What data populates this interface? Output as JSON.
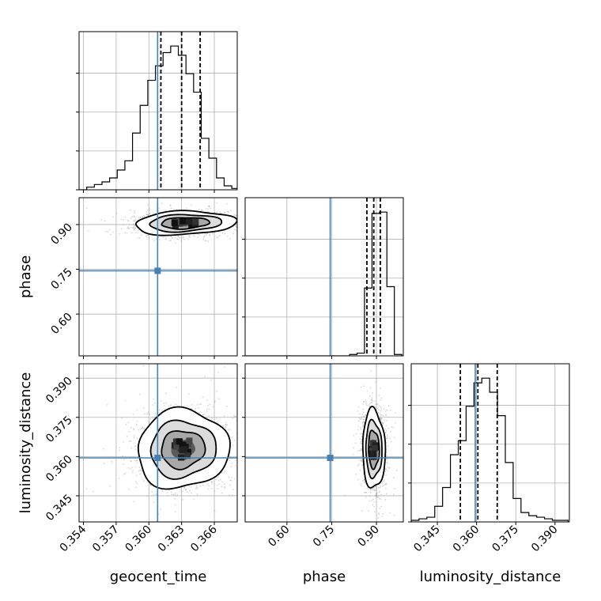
{
  "chart_data": {
    "type": "corner",
    "parameters": [
      "geocent_time",
      "phase",
      "luminosity_distance"
    ],
    "truth": {
      "geocent_time": 0.3608,
      "phase": 0.745,
      "luminosity_distance": 0.3595
    },
    "colors": {
      "truth": "#4682b4",
      "hist": "#000000",
      "grid": "#b0b0b0",
      "scatter": "#8c8c8c"
    },
    "grid": true,
    "axes": {
      "geocent_time": {
        "range": [
          0.3536,
          0.3681
        ],
        "ticks": [
          0.354,
          0.357,
          0.36,
          0.363,
          0.366
        ],
        "tick_labels": [
          "0.354",
          "0.357",
          "0.360",
          "0.363",
          "0.366"
        ]
      },
      "phase": {
        "range": [
          0.46,
          0.99
        ],
        "ticks": [
          0.6,
          0.75,
          0.9
        ],
        "tick_labels": [
          "0.60",
          "0.75",
          "0.90"
        ]
      },
      "luminosity_distance": {
        "range": [
          0.335,
          0.3955
        ],
        "ticks": [
          0.345,
          0.36,
          0.375,
          0.39
        ],
        "tick_labels": [
          "0.345",
          "0.360",
          "0.375",
          "0.390"
        ]
      }
    },
    "marginals": [
      {
        "parameter": "geocent_time",
        "bin_edges": [
          0.3536,
          0.3543,
          0.355,
          0.3557,
          0.3564,
          0.3571,
          0.3578,
          0.3585,
          0.3592,
          0.3599,
          0.3606,
          0.3613,
          0.362,
          0.3627,
          0.3634,
          0.3641,
          0.3648,
          0.3655,
          0.3662,
          0.3669,
          0.3676,
          0.3683
        ],
        "counts": [
          0,
          2,
          4,
          6,
          9,
          15,
          22,
          43,
          64,
          83,
          94,
          104,
          109,
          102,
          88,
          74,
          39,
          24,
          9,
          3,
          1
        ],
        "quantiles": [
          0.3611,
          0.363,
          0.3647
        ]
      },
      {
        "parameter": "phase",
        "bin_edges": [
          0.46,
          0.485,
          0.51,
          0.535,
          0.56,
          0.585,
          0.61,
          0.635,
          0.66,
          0.685,
          0.71,
          0.735,
          0.76,
          0.785,
          0.81,
          0.835,
          0.86,
          0.885,
          0.91,
          0.935,
          0.96,
          0.985
        ],
        "counts": [
          0,
          0,
          0,
          0,
          0,
          0,
          0,
          0,
          0,
          0,
          0,
          0,
          0,
          0,
          1,
          2,
          50,
          105,
          106,
          51,
          1
        ],
        "quantiles": [
          0.868,
          0.891,
          0.913
        ]
      },
      {
        "parameter": "luminosity_distance",
        "bin_edges": [
          0.335,
          0.338,
          0.341,
          0.344,
          0.347,
          0.35,
          0.353,
          0.356,
          0.359,
          0.362,
          0.365,
          0.368,
          0.371,
          0.374,
          0.377,
          0.38,
          0.383,
          0.386,
          0.389,
          0.392,
          0.395
        ],
        "counts": [
          1,
          2,
          3,
          10,
          22,
          43,
          52,
          74,
          89,
          92,
          83,
          68,
          38,
          15,
          6,
          4,
          3,
          2,
          1,
          1
        ],
        "quantiles": [
          0.3538,
          0.3605,
          0.3679
        ]
      }
    ],
    "joints": [
      {
        "x": "geocent_time",
        "y": "phase",
        "center": [
          0.3633,
          0.905
        ],
        "sigma": [
          0.0022,
          0.019
        ],
        "rho": 0.15,
        "n_samples": 1700
      },
      {
        "x": "geocent_time",
        "y": "luminosity_distance",
        "center": [
          0.3631,
          0.3628
        ],
        "sigma": [
          0.002,
          0.0072
        ],
        "rho": 0.05,
        "n_samples": 1900
      },
      {
        "x": "phase",
        "y": "luminosity_distance",
        "center": [
          0.891,
          0.3628
        ],
        "sigma": [
          0.018,
          0.0072
        ],
        "rho": -0.05,
        "n_samples": 1900
      }
    ],
    "contour_levels": [
      0.118,
      0.393,
      0.675,
      0.865
    ]
  }
}
